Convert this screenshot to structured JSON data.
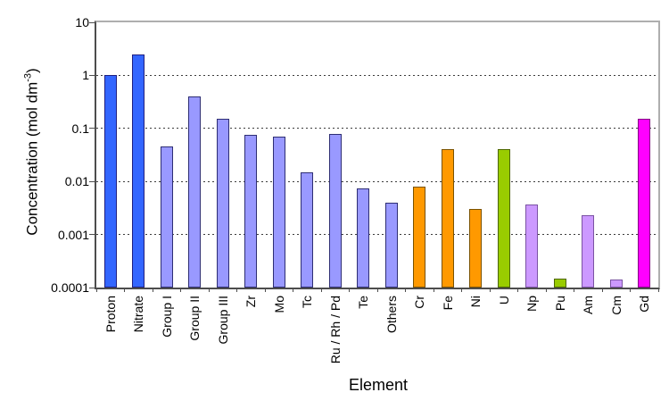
{
  "chart_data": {
    "type": "bar",
    "title": "",
    "xlabel": "Element",
    "ylabel": "Concentration (mol dm^-3)",
    "ylabel_main": "Concentration (mol dm",
    "ylabel_sup": "-3",
    "ylabel_close": ")",
    "categories": [
      "Proton",
      "Nitrate",
      "Group I",
      "Group II",
      "Group III",
      "Zr",
      "Mo",
      "Tc",
      "Ru / Rh / Pd",
      "Te",
      "Others",
      "Cr",
      "Fe",
      "Ni",
      "U",
      "Np",
      "Pu",
      "Am",
      "Cm",
      "Gd"
    ],
    "values": [
      1.0,
      2.5,
      0.045,
      0.4,
      0.15,
      0.075,
      0.07,
      0.015,
      0.08,
      0.0075,
      0.004,
      0.008,
      0.04,
      0.003,
      0.04,
      0.0037,
      0.00015,
      0.0023,
      0.00014,
      0.15
    ],
    "bar_color_keys": [
      "blue",
      "blue",
      "periwinkle",
      "periwinkle",
      "periwinkle",
      "periwinkle",
      "periwinkle",
      "periwinkle",
      "periwinkle",
      "periwinkle",
      "periwinkle",
      "orange",
      "orange",
      "orange",
      "green",
      "violet",
      "green",
      "violet",
      "violet",
      "magenta"
    ],
    "colors": {
      "blue": {
        "fill": "#3366FF",
        "border": "#1F1F80"
      },
      "periwinkle": {
        "fill": "#9999FF",
        "border": "#2E2E73"
      },
      "orange": {
        "fill": "#FF9900",
        "border": "#7A5200"
      },
      "green": {
        "fill": "#99CC00",
        "border": "#4D6600"
      },
      "violet": {
        "fill": "#CC99FF",
        "border": "#7A52A3"
      },
      "magenta": {
        "fill": "#FF00FF",
        "border": "#850085"
      }
    },
    "y_axis": {
      "scale": "log",
      "ylim": [
        0.0001,
        10
      ],
      "tick_labels": [
        "10",
        "1",
        "0.1",
        "0.01",
        "0.001",
        "0.0001"
      ]
    },
    "grid": {
      "horizontal": "dashed",
      "at": [
        1,
        0.1,
        0.01,
        0.001
      ]
    },
    "legend": "none"
  }
}
